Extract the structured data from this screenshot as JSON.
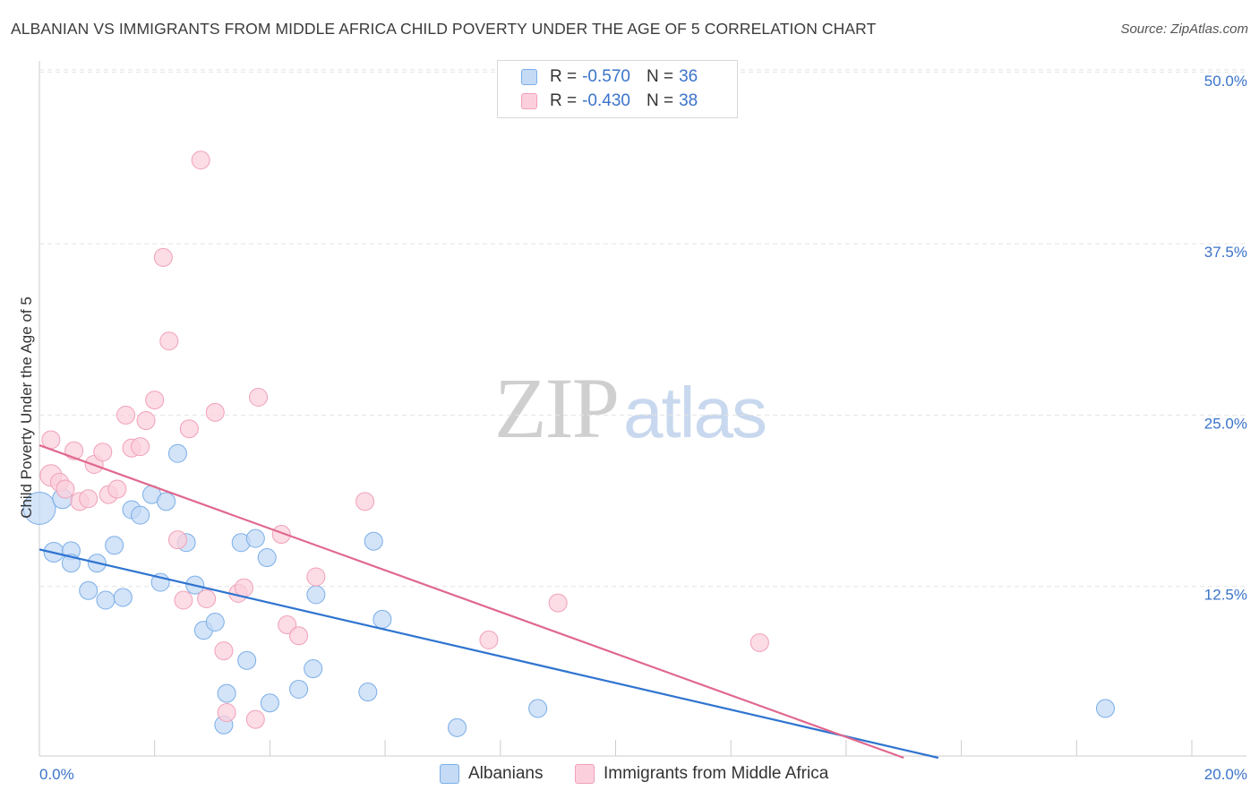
{
  "title": "ALBANIAN VS IMMIGRANTS FROM MIDDLE AFRICA CHILD POVERTY UNDER THE AGE OF 5 CORRELATION CHART",
  "source": "Source: ZipAtlas.com",
  "watermark": {
    "zip": "ZIP",
    "atlas": "atlas"
  },
  "legend": {
    "rows": [
      {
        "r_label": "R = ",
        "r_value": "-0.570",
        "n_label": "N = ",
        "n_value": "36",
        "color": "#7aaee8",
        "fill": "#c4daf5"
      },
      {
        "r_label": "R = ",
        "r_value": "-0.430",
        "n_label": "N = ",
        "n_value": "38",
        "color": "#f0a0b8",
        "fill": "#fbd0dc"
      }
    ]
  },
  "bottom_legend": {
    "series1": "Albanians",
    "series2": "Immigrants from Middle Africa"
  },
  "chart_data": {
    "type": "scatter",
    "title": "ALBANIAN VS IMMIGRANTS FROM MIDDLE AFRICA CHILD POVERTY UNDER THE AGE OF 5 CORRELATION CHART",
    "xlabel": "",
    "ylabel": "Child Poverty Under the Age of 5",
    "xlim": [
      0,
      20
    ],
    "ylim": [
      0,
      52
    ],
    "x_tick_labels": [
      "0.0%",
      "20.0%"
    ],
    "y_ticks": [
      12.5,
      25.0,
      37.5,
      50.0
    ],
    "y_tick_labels": [
      "12.5%",
      "25.0%",
      "37.5%",
      "50.0%"
    ],
    "grid": "horizontal dashed",
    "legend_position": "top-center",
    "series": [
      {
        "name": "Albanians",
        "color": "#7aaee8",
        "fill": "#c4daf5",
        "line_color": "#2f74d0",
        "trend": {
          "x0": 0,
          "y0": 15.2,
          "x1": 15.6,
          "y1": 0
        },
        "points": [
          [
            0.0,
            18.2,
            18
          ],
          [
            0.4,
            18.9,
            11
          ],
          [
            0.25,
            15.0,
            11
          ],
          [
            0.55,
            15.1,
            10
          ],
          [
            0.55,
            14.2,
            10
          ],
          [
            0.85,
            12.2,
            10
          ],
          [
            1.0,
            14.2,
            10
          ],
          [
            1.15,
            11.5,
            10
          ],
          [
            1.3,
            15.5,
            10
          ],
          [
            1.45,
            11.7,
            10
          ],
          [
            1.6,
            18.1,
            10
          ],
          [
            1.75,
            17.7,
            10
          ],
          [
            1.95,
            19.2,
            10
          ],
          [
            2.1,
            12.8,
            10
          ],
          [
            2.2,
            18.7,
            10
          ],
          [
            2.4,
            22.2,
            10
          ],
          [
            2.55,
            15.7,
            10
          ],
          [
            2.7,
            12.6,
            10
          ],
          [
            2.85,
            9.3,
            10
          ],
          [
            3.05,
            9.9,
            10
          ],
          [
            3.25,
            4.7,
            10
          ],
          [
            3.2,
            2.4,
            10
          ],
          [
            3.5,
            15.7,
            10
          ],
          [
            3.6,
            7.1,
            10
          ],
          [
            3.75,
            16.0,
            10
          ],
          [
            3.95,
            14.6,
            10
          ],
          [
            4.0,
            4.0,
            10
          ],
          [
            4.5,
            5.0,
            10
          ],
          [
            4.75,
            6.5,
            10
          ],
          [
            4.8,
            11.9,
            10
          ],
          [
            5.7,
            4.8,
            10
          ],
          [
            5.8,
            15.8,
            10
          ],
          [
            5.95,
            10.1,
            10
          ],
          [
            7.25,
            2.2,
            10
          ],
          [
            8.65,
            3.6,
            10
          ],
          [
            18.5,
            3.6,
            10
          ]
        ]
      },
      {
        "name": "Immigrants from Middle Africa",
        "color": "#f0a0b8",
        "fill": "#fbd0dc",
        "line_color": "#e0688e",
        "trend": {
          "x0": 0,
          "y0": 22.8,
          "x1": 15.0,
          "y1": 0
        },
        "points": [
          [
            0.2,
            20.6,
            12
          ],
          [
            0.35,
            20.1,
            10
          ],
          [
            0.45,
            19.6,
            10
          ],
          [
            0.6,
            22.4,
            10
          ],
          [
            0.7,
            18.7,
            10
          ],
          [
            0.85,
            18.9,
            10
          ],
          [
            0.95,
            21.4,
            10
          ],
          [
            1.1,
            22.3,
            10
          ],
          [
            1.2,
            19.2,
            10
          ],
          [
            1.35,
            19.6,
            10
          ],
          [
            1.5,
            25.0,
            10
          ],
          [
            1.6,
            22.6,
            10
          ],
          [
            1.75,
            22.7,
            10
          ],
          [
            1.85,
            24.6,
            10
          ],
          [
            2.0,
            26.1,
            10
          ],
          [
            2.15,
            36.5,
            10
          ],
          [
            2.25,
            30.4,
            10
          ],
          [
            2.4,
            15.9,
            10
          ],
          [
            2.5,
            11.5,
            10
          ],
          [
            2.6,
            24.0,
            10
          ],
          [
            2.8,
            43.6,
            10
          ],
          [
            2.9,
            11.6,
            10
          ],
          [
            3.05,
            25.2,
            10
          ],
          [
            3.2,
            7.8,
            10
          ],
          [
            3.25,
            3.3,
            10
          ],
          [
            3.45,
            12.0,
            10
          ],
          [
            3.55,
            12.4,
            10
          ],
          [
            3.75,
            2.8,
            10
          ],
          [
            3.8,
            26.3,
            10
          ],
          [
            4.2,
            16.3,
            10
          ],
          [
            4.3,
            9.7,
            10
          ],
          [
            4.5,
            8.9,
            10
          ],
          [
            4.8,
            13.2,
            10
          ],
          [
            5.65,
            18.7,
            10
          ],
          [
            7.8,
            8.6,
            10
          ],
          [
            9.0,
            11.3,
            10
          ],
          [
            12.5,
            8.4,
            10
          ],
          [
            0.2,
            23.2,
            10
          ]
        ]
      }
    ]
  }
}
